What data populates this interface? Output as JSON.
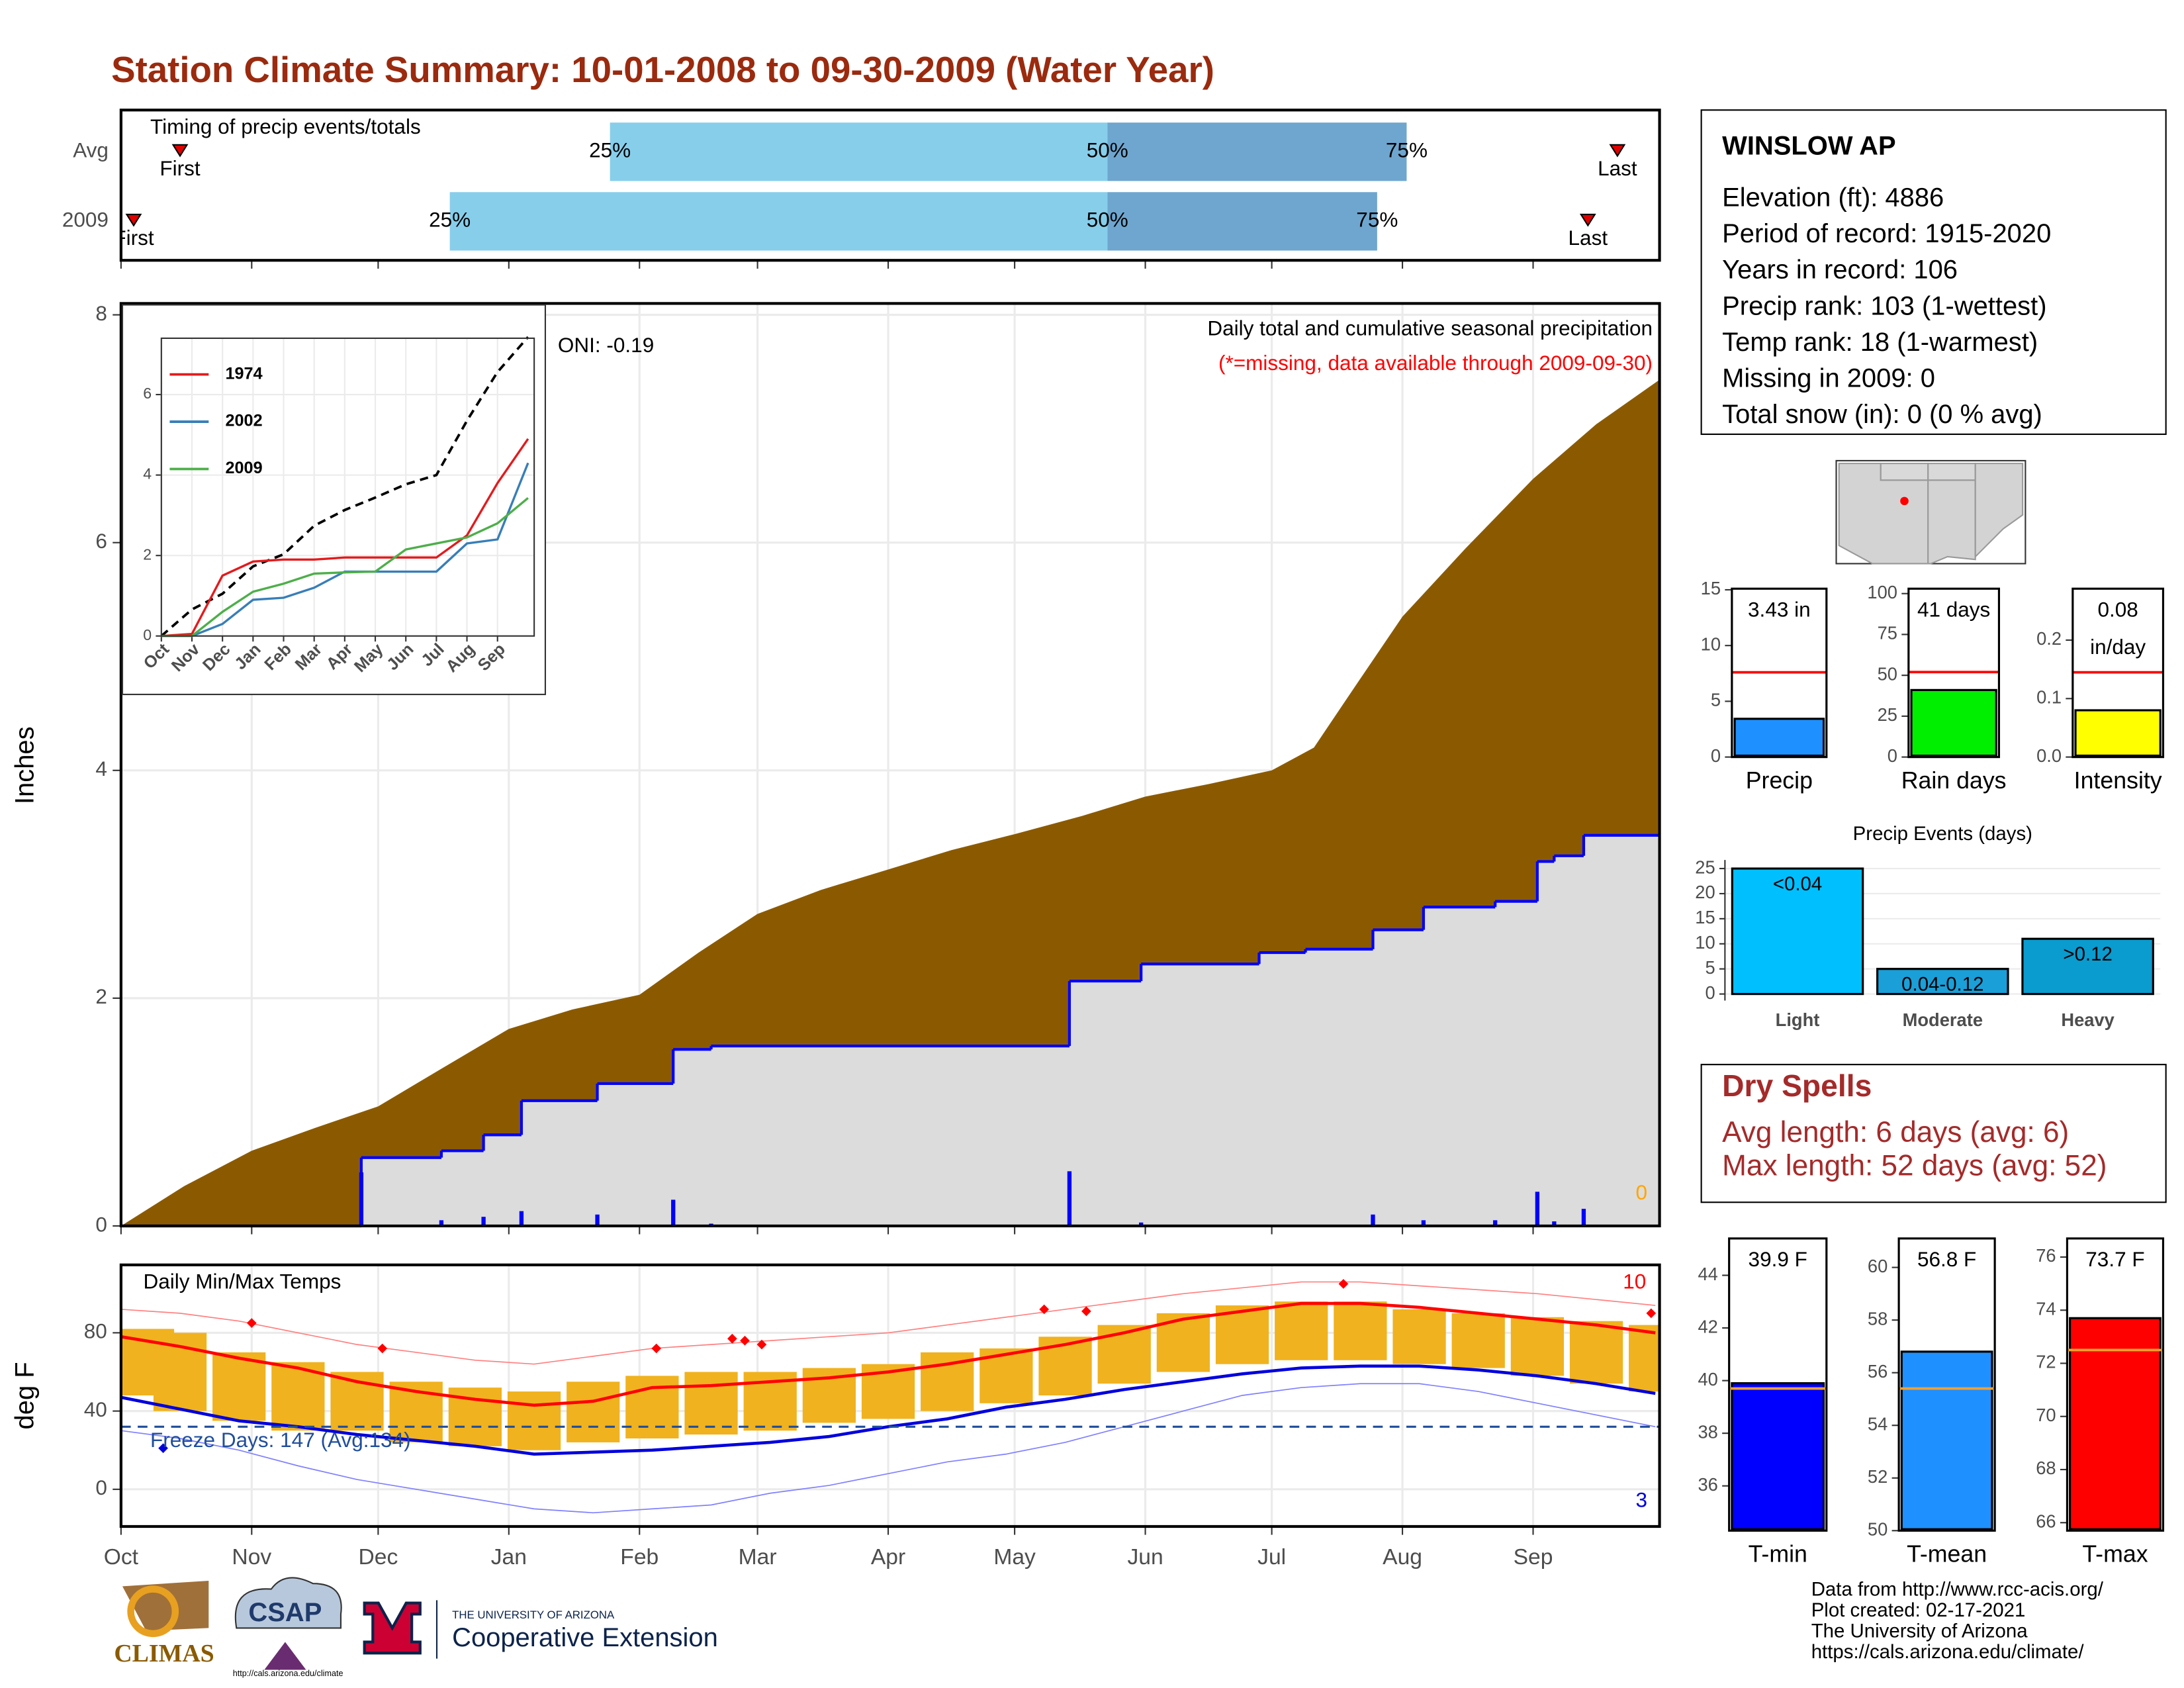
{
  "title": "Station Climate Summary: 10-01-2008 to 09-30-2009 (Water Year)",
  "station": {
    "name": "WINSLOW AP",
    "lines": [
      "Elevation (ft): 4886",
      "Period of record: 1915-2020",
      "Years in record: 106",
      "Precip rank: 103 (1-wettest)",
      "Temp rank: 18 (1-warmest)",
      "Missing in 2009: 0",
      "Total snow (in): 0 (0 % avg)"
    ]
  },
  "dry_spells": {
    "title": "Dry Spells",
    "lines": [
      "Avg length: 6 days (avg: 6)",
      "Max length: 52 days (avg: 52)"
    ]
  },
  "footer": [
    "Data from http://www.rcc-acis.org/",
    "Plot created: 02-17-2021",
    "The University of Arizona",
    "https://cals.arizona.edu/climate/"
  ],
  "logos": [
    "CLIMAS",
    "CSAP",
    "http://cals.arizona.edu/climate",
    "THE UNIVERSITY OF ARIZONA",
    "Cooperative Extension"
  ],
  "chart_data": [
    {
      "type": "timing",
      "title": "Timing of precip events/totals",
      "categories": [
        "Avg",
        "2009"
      ],
      "first": [
        14,
        3
      ],
      "q25": [
        116,
        78
      ],
      "q50": [
        234,
        234
      ],
      "q75": [
        305,
        298
      ],
      "last": [
        355,
        348
      ],
      "first_label": "First",
      "last_label": "Last",
      "quantile_labels": [
        "25%",
        "50%",
        "75%"
      ],
      "colors": [
        "#87ceeb",
        "#6ea6cf"
      ],
      "marker_color": "#e00000"
    },
    {
      "type": "precip",
      "title": "Daily total and cumulative seasonal precipitation",
      "subtitle": "(*=missing, data available through 2009-09-30)",
      "annotation": "ONI: -0.19",
      "missing_count": 0,
      "ylabel": "Inches",
      "grid": true,
      "xlim": [
        0,
        365
      ],
      "ylim": [
        0,
        8.1
      ],
      "yticks": [
        0,
        2,
        4,
        6,
        8
      ],
      "xticks": [
        {
          "value": 0,
          "label": "Oct"
        },
        {
          "value": 31,
          "label": "Nov"
        },
        {
          "value": 61,
          "label": "Dec"
        },
        {
          "value": 92,
          "label": "Jan"
        },
        {
          "value": 123,
          "label": "Feb"
        },
        {
          "value": 151,
          "label": "Mar"
        },
        {
          "value": 182,
          "label": "Apr"
        },
        {
          "value": 212,
          "label": "May"
        },
        {
          "value": 243,
          "label": "Jun"
        },
        {
          "value": 273,
          "label": "Jul"
        },
        {
          "value": 304,
          "label": "Aug"
        },
        {
          "value": 335,
          "label": "Sep"
        }
      ],
      "series": [
        {
          "color": "#8b5a00",
          "x": [
            0,
            15,
            31,
            46,
            61,
            76,
            92,
            107,
            123,
            137,
            151,
            166,
            182,
            197,
            212,
            228,
            243,
            258,
            273,
            283,
            293,
            304,
            319,
            335,
            350,
            365
          ],
          "values": [
            0,
            0.35,
            0.66,
            0.86,
            1.05,
            1.38,
            1.73,
            1.9,
            2.03,
            2.4,
            2.74,
            2.95,
            3.13,
            3.3,
            3.44,
            3.6,
            3.77,
            3.88,
            4.0,
            4.2,
            4.75,
            5.35,
            5.95,
            6.56,
            7.04,
            7.43
          ]
        },
        {
          "color": "#0000ff",
          "fill": "#dcdcdc",
          "x": [
            0,
            57,
            76,
            86,
            95,
            113,
            131,
            140,
            225,
            242,
            270,
            281,
            297,
            309,
            326,
            336,
            340,
            347,
            365
          ],
          "values": [
            0,
            0.6,
            0.66,
            0.8,
            1.1,
            1.25,
            1.55,
            1.58,
            2.15,
            2.3,
            2.4,
            2.43,
            2.6,
            2.8,
            2.85,
            3.2,
            3.25,
            3.43,
            3.43
          ]
        },
        {
          "color": "#0000ff",
          "x": [
            57,
            76,
            86,
            95,
            113,
            131,
            140,
            225,
            242,
            297,
            309,
            326,
            336,
            340,
            347
          ],
          "values": [
            0.47,
            0.05,
            0.08,
            0.13,
            0.1,
            0.23,
            0.02,
            0.48,
            0.03,
            0.1,
            0.05,
            0.05,
            0.3,
            0.04,
            0.15
          ]
        }
      ]
    },
    {
      "type": "line",
      "xlim": [
        0,
        12.2
      ],
      "ylim": [
        0,
        7.4
      ],
      "yticks": [
        0,
        2,
        4,
        6
      ],
      "legend": "top-left",
      "xticks": [
        {
          "value": 0,
          "label": "Oct"
        },
        {
          "value": 1,
          "label": "Nov"
        },
        {
          "value": 2,
          "label": "Dec"
        },
        {
          "value": 3,
          "label": "Jan"
        },
        {
          "value": 4,
          "label": "Feb"
        },
        {
          "value": 5,
          "label": "Mar"
        },
        {
          "value": 6,
          "label": "Apr"
        },
        {
          "value": 7,
          "label": "May"
        },
        {
          "value": 8,
          "label": "Jun"
        },
        {
          "value": 9,
          "label": "Jul"
        },
        {
          "value": 10,
          "label": "Aug"
        },
        {
          "value": 11,
          "label": "Sep"
        }
      ],
      "x": [
        0,
        1,
        2,
        3,
        4,
        5,
        6,
        7,
        8,
        9,
        10,
        11,
        12
      ],
      "average": {
        "color": "#000000",
        "values": [
          0,
          0.66,
          1.05,
          1.73,
          2.03,
          2.74,
          3.13,
          3.44,
          3.77,
          4.0,
          5.35,
          6.56,
          7.43
        ]
      },
      "series": [
        {
          "name": "1974",
          "color": "#e41a1c",
          "values": [
            0,
            0.05,
            1.5,
            1.85,
            1.9,
            1.9,
            1.95,
            1.95,
            1.95,
            1.95,
            2.5,
            3.8,
            4.9
          ]
        },
        {
          "name": "2002",
          "color": "#377eb8",
          "values": [
            0,
            0,
            0.3,
            0.9,
            0.95,
            1.2,
            1.6,
            1.6,
            1.6,
            1.6,
            2.3,
            2.4,
            4.3
          ]
        },
        {
          "name": "2009",
          "color": "#4daf4a",
          "values": [
            0,
            0,
            0.6,
            1.1,
            1.3,
            1.55,
            1.58,
            1.6,
            2.15,
            2.3,
            2.45,
            2.8,
            3.43
          ]
        }
      ]
    },
    {
      "type": "temperature",
      "title": "Daily Min/Max Temps",
      "ylabel": "deg F",
      "ylim": [
        -19,
        114
      ],
      "yticks": [
        0,
        40,
        80
      ],
      "grid": true,
      "freeze_line": 32,
      "freeze_label": "Freeze Days: 147 (Avg:134)",
      "record_high_count": 10,
      "record_low_count": 3,
      "x": [
        0,
        14,
        28,
        42,
        56,
        70,
        84,
        98,
        112,
        126,
        140,
        154,
        168,
        182,
        196,
        210,
        224,
        238,
        252,
        266,
        280,
        294,
        308,
        322,
        336,
        350,
        364
      ],
      "obs_max": [
        82,
        80,
        70,
        65,
        60,
        55,
        52,
        50,
        55,
        58,
        60,
        60,
        62,
        64,
        70,
        72,
        78,
        84,
        90,
        94,
        96,
        96,
        92,
        90,
        88,
        86,
        84
      ],
      "obs_min": [
        48,
        40,
        35,
        30,
        30,
        24,
        22,
        20,
        24,
        26,
        28,
        30,
        34,
        36,
        40,
        44,
        48,
        54,
        60,
        64,
        66,
        66,
        64,
        62,
        58,
        54,
        50
      ],
      "normal_max": [
        78,
        73,
        67,
        62,
        55,
        50,
        46,
        43,
        45,
        52,
        53,
        55,
        57,
        60,
        64,
        69,
        74,
        80,
        87,
        91,
        95,
        95,
        93,
        90,
        87,
        84,
        80
      ],
      "normal_min": [
        47,
        41,
        35,
        32,
        28,
        25,
        22,
        18,
        19,
        20,
        22,
        24,
        27,
        32,
        36,
        42,
        46,
        51,
        55,
        59,
        62,
        63,
        63,
        61,
        58,
        54,
        49
      ],
      "record_max": [
        92,
        90,
        86,
        80,
        74,
        70,
        66,
        64,
        68,
        72,
        74,
        76,
        78,
        80,
        84,
        88,
        92,
        96,
        100,
        103,
        106,
        106,
        104,
        102,
        100,
        97,
        94
      ],
      "record_min": [
        30,
        26,
        20,
        12,
        5,
        0,
        -5,
        -10,
        -12,
        -10,
        -8,
        -2,
        2,
        8,
        14,
        18,
        24,
        32,
        40,
        48,
        52,
        54,
        54,
        50,
        44,
        38,
        32
      ],
      "record_highs": {
        "x": [
          31,
          62,
          127,
          145,
          148,
          152,
          219,
          229,
          290,
          363
        ],
        "values": [
          85,
          72,
          72,
          77,
          76,
          74,
          92,
          91,
          105,
          90
        ]
      },
      "record_lows": {
        "x": [
          10
        ],
        "values": [
          21
        ]
      },
      "colors": {
        "obs": "#f0b21e",
        "normal_max": "#ff0000",
        "normal_min": "#0000dd",
        "record_max": "#ff8080",
        "record_min": "#8080ff",
        "freeze": "#1f4e9c"
      }
    },
    {
      "type": "gauge",
      "categories": [
        "Precip"
      ],
      "values": [
        3.43
      ],
      "value_labels": [
        "3.43 in"
      ],
      "average": 7.6,
      "average_color": "#ff0000",
      "color": "#1e90ff",
      "ylim": [
        0,
        15.1
      ],
      "yticks": [
        0,
        5,
        10,
        15
      ]
    },
    {
      "type": "gauge",
      "categories": [
        "Rain days"
      ],
      "values": [
        41
      ],
      "value_labels": [
        "41 days"
      ],
      "average": 52,
      "average_color": "#ff0000",
      "color": "#00ee00",
      "ylim": [
        0,
        103
      ],
      "yticks": [
        0,
        25,
        50,
        75,
        100
      ]
    },
    {
      "type": "gauge",
      "categories": [
        "Intensity"
      ],
      "values": [
        0.08
      ],
      "value_labels": [
        "0.08"
      ],
      "unit_label": "in/day",
      "average": 0.145,
      "average_color": "#ff0000",
      "color": "#ffff00",
      "ylim": [
        0,
        0.288
      ],
      "yticks": [
        {
          "value": 0,
          "label": "0.0"
        },
        0.1,
        0.2
      ]
    },
    {
      "type": "bar",
      "title": "Precip Events (days)",
      "categories": [
        "Light",
        "Moderate",
        "Heavy"
      ],
      "values": [
        25,
        5,
        11
      ],
      "bar_labels": [
        "<0.04",
        "0.04-0.12",
        ">0.12"
      ],
      "colors": [
        "#00bfff",
        "#1a9fd8",
        "#0a9bcf"
      ],
      "ylim": [
        -1.3,
        26.7
      ],
      "yticks": [
        0,
        5,
        10,
        15,
        20,
        25
      ],
      "grid": true
    },
    {
      "type": "gauge",
      "categories": [
        "T-min"
      ],
      "values": [
        39.9
      ],
      "value_labels": [
        "39.9 F"
      ],
      "average": 39.7,
      "average_color": "#f0a030",
      "color": "#0000ff",
      "ylim": [
        34.3,
        45.4
      ],
      "yticks": [
        36,
        38,
        40,
        42,
        44
      ]
    },
    {
      "type": "gauge",
      "categories": [
        "T-mean"
      ],
      "values": [
        56.8
      ],
      "value_labels": [
        "56.8 F"
      ],
      "average": 55.4,
      "average_color": "#f0a030",
      "color": "#1e90ff",
      "ylim": [
        50,
        61.1
      ],
      "yticks": [
        50,
        52,
        54,
        56,
        58,
        60
      ]
    },
    {
      "type": "gauge",
      "categories": [
        "T-max"
      ],
      "values": [
        73.7
      ],
      "value_labels": [
        "73.7 F"
      ],
      "average": 72.5,
      "average_color": "#f0a030",
      "color": "#ff0000",
      "ylim": [
        65.7,
        76.7
      ],
      "yticks": [
        66,
        68,
        70,
        72,
        74,
        76
      ]
    }
  ]
}
